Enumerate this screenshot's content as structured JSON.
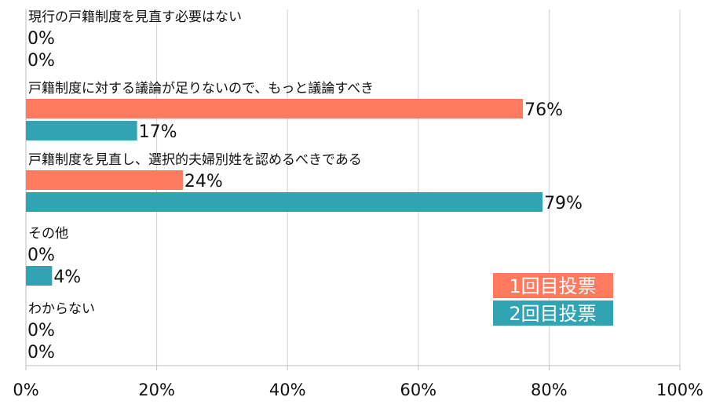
{
  "chart_data": {
    "type": "bar",
    "orientation": "horizontal",
    "title": "",
    "xlabel": "",
    "ylabel": "",
    "xlim": [
      0,
      100
    ],
    "x_ticks": [
      "0%",
      "20%",
      "40%",
      "60%",
      "80%",
      "100%"
    ],
    "x_tick_values": [
      0,
      20,
      40,
      60,
      80,
      100
    ],
    "grid": true,
    "legend_position": "bottom-right",
    "categories": [
      "現行の戸籍制度を見直す必要はない",
      "戸籍制度に対する議論が足りないので、もっと議論すべき",
      "戸籍制度を見直し、選択的夫婦別姓を認めるべきである",
      "その他",
      "わからない"
    ],
    "series": [
      {
        "name": "1回目投票",
        "color": "#ff7a5f",
        "values": [
          0,
          76,
          24,
          0,
          0
        ],
        "labels": [
          "0%",
          "76%",
          "24%",
          "0%",
          "0%"
        ]
      },
      {
        "name": "2回目投票",
        "color": "#31a4b4",
        "values": [
          0,
          17,
          79,
          4,
          0
        ],
        "labels": [
          "0%",
          "17%",
          "79%",
          "4%",
          "0%"
        ]
      }
    ]
  }
}
